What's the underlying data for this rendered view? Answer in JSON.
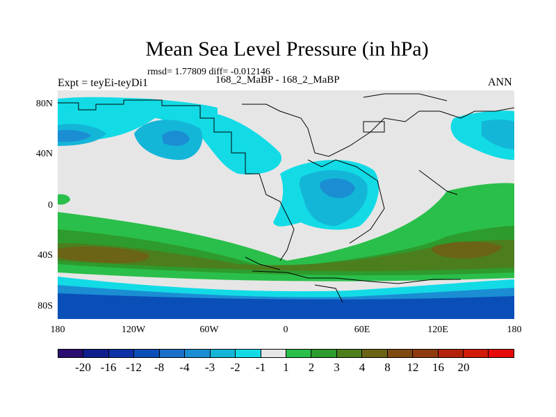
{
  "title": "Mean Sea Level Pressure (in hPa)",
  "stats": "rmsd= 1.77809 diff= -0.012146",
  "expt_label": "Expt = teyEi-teyDi1",
  "cases": "168_2_MaBP - 168_2_MaBP",
  "season": "ANN",
  "y_labels": [
    "80N",
    "40N",
    "0",
    "40S",
    "80S"
  ],
  "x_labels": [
    "180",
    "120W",
    "60W",
    "0",
    "60E",
    "120E",
    "180"
  ],
  "colorbar": {
    "colors": [
      "#2a0d6e",
      "#0f1f8c",
      "#0c32a6",
      "#0a4fb8",
      "#1a6fc8",
      "#1b8ed3",
      "#14b6d8",
      "#12dbe6",
      "#e6e6e6",
      "#2abf4a",
      "#2d9b2d",
      "#4d7e1e",
      "#6b6315",
      "#7f4a12",
      "#8f3a0f",
      "#b3230c",
      "#d11a08",
      "#e60a0a"
    ],
    "labels": [
      "-20",
      "-16",
      "-12",
      "-8",
      "-4",
      "-3",
      "-2",
      "-1",
      "1",
      "2",
      "3",
      "4",
      "8",
      "12",
      "16",
      "20"
    ]
  },
  "fill_colors": {
    "neutral": "#e6e6e6",
    "neg1": "#12dbe6",
    "neg2": "#14b6d8",
    "neg3": "#1b8ed3",
    "neg4": "#1a6fc8",
    "neg8": "#0a4fb8",
    "neg12": "#0c32a6",
    "pos1": "#2abf4a",
    "pos2": "#2d9b2d",
    "pos3": "#4d7e1e",
    "pos4": "#6b6315"
  }
}
